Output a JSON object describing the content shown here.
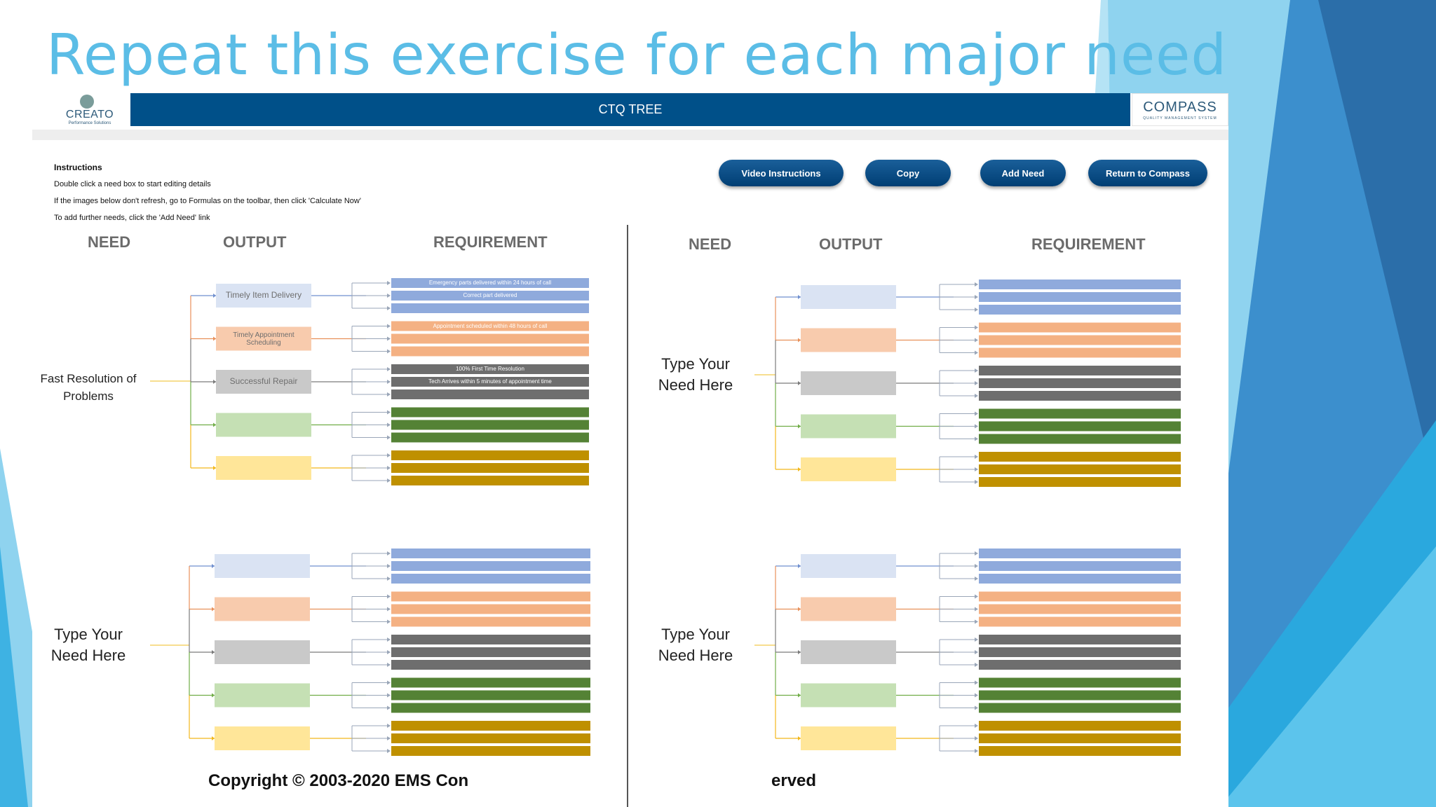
{
  "slide": {
    "title": "Repeat this exercise for each major need"
  },
  "colors": {
    "accent": "#5bbde6",
    "bar": "#005089",
    "blue": "#8faadc",
    "orange": "#f4b183",
    "gray": "#6e6e6e",
    "green": "#548235",
    "gold": "#bf9000"
  },
  "brands": {
    "creato": {
      "name": "CREATO",
      "tagline": "Performance Solutions"
    },
    "compass": {
      "name": "COMPASS",
      "tagline": "QUALITY MANAGEMENT SYSTEM"
    }
  },
  "header": {
    "title": "CTQ TREE"
  },
  "instructions": {
    "heading": "Instructions",
    "lines": [
      "Double click a need box to start editing details",
      "If the images below don't refresh, go to Formulas on the toolbar, then click 'Calculate Now'",
      "To add further needs, click the 'Add Need' link"
    ]
  },
  "buttons": {
    "video": "Video Instructions",
    "copy": "Copy",
    "add_need": "Add Need",
    "return": "Return to Compass"
  },
  "columns": {
    "need": "NEED",
    "output": "OUTPUT",
    "requirement": "REQUIREMENT"
  },
  "trees": [
    {
      "need": "Fast Resolution of Problems",
      "outputs": [
        "Timely Item Delivery",
        "Timely Appointment Scheduling",
        "Successful Repair",
        "",
        ""
      ],
      "requirements": [
        [
          "Emergency parts delivered within 24 hours of call",
          "Correct part delivered",
          ""
        ],
        [
          "Appointment scheduled within 48 hours of call",
          "",
          ""
        ],
        [
          "100% First Time Resolution",
          "Tech Arrives within 5 minutes of appointment time",
          ""
        ],
        [
          "",
          "",
          ""
        ],
        [
          "",
          "",
          ""
        ]
      ]
    },
    {
      "need": "Type Your Need Here",
      "outputs": [
        "",
        "",
        "",
        "",
        ""
      ],
      "requirements": [
        [
          "",
          "",
          ""
        ],
        [
          "",
          "",
          ""
        ],
        [
          "",
          "",
          ""
        ],
        [
          "",
          "",
          ""
        ],
        [
          "",
          "",
          ""
        ]
      ]
    },
    {
      "need": "Type Your Need Here",
      "outputs": [
        "",
        "",
        "",
        "",
        ""
      ],
      "requirements": [
        [
          "",
          "",
          ""
        ],
        [
          "",
          "",
          ""
        ],
        [
          "",
          "",
          ""
        ],
        [
          "",
          "",
          ""
        ],
        [
          "",
          "",
          ""
        ]
      ]
    },
    {
      "need": "Type Your Need Here",
      "outputs": [
        "",
        "",
        "",
        "",
        ""
      ],
      "requirements": [
        [
          "",
          "",
          ""
        ],
        [
          "",
          "",
          ""
        ],
        [
          "",
          "",
          ""
        ],
        [
          "",
          "",
          ""
        ],
        [
          "",
          "",
          ""
        ]
      ]
    }
  ],
  "footer": {
    "copyright_left": "Copyright © 2003-2020 EMS Con",
    "copyright_right": "erved"
  }
}
